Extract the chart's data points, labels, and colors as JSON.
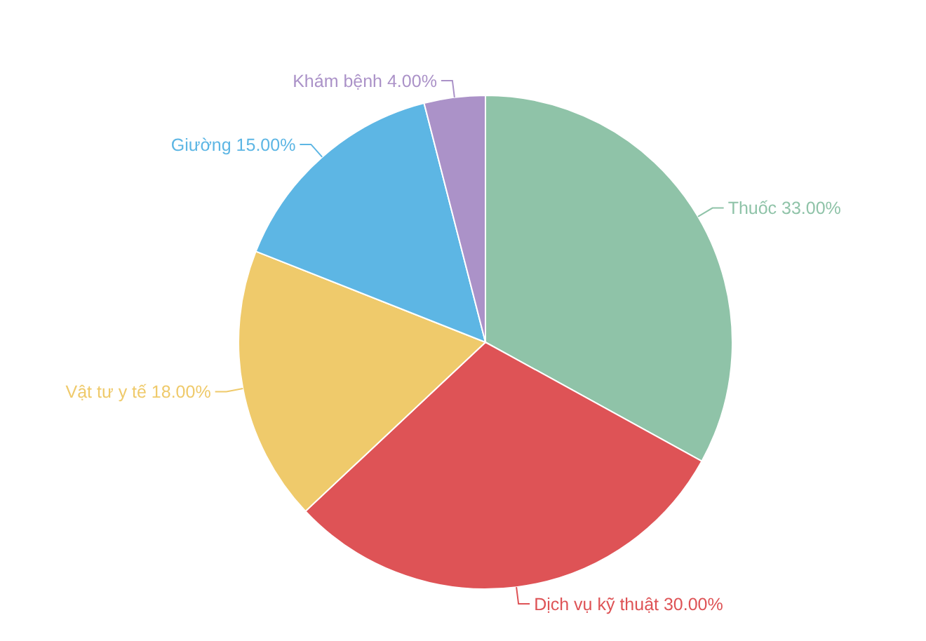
{
  "chart_data": {
    "type": "pie",
    "categories": [
      "Thuốc",
      "Dịch vụ kỹ thuật",
      "Vật tư y tế",
      "Giường",
      "Khám bệnh"
    ],
    "values": [
      33,
      30,
      18,
      15,
      4
    ],
    "colors": [
      "#8fc3a8",
      "#de5356",
      "#efca6b",
      "#5db6e4",
      "#ab92c8"
    ],
    "value_labels": [
      "33.00%",
      "30.00%",
      "18.00%",
      "15.00%",
      "4.00%"
    ]
  }
}
